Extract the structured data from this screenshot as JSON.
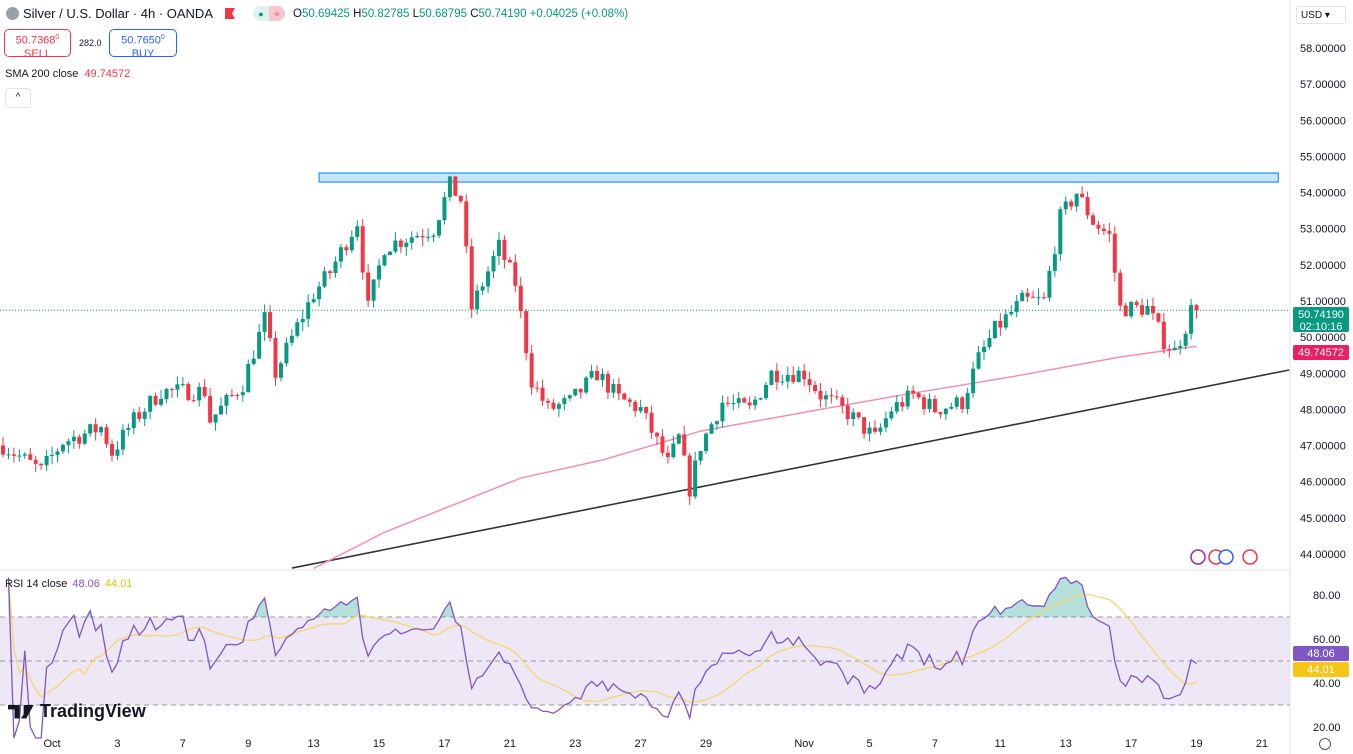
{
  "header": {
    "symbol": "Silver / U.S. Dollar · 4h · OANDA",
    "open_label": "O",
    "open": "50.69425",
    "high_label": "H",
    "high": "50.82785",
    "low_label": "L",
    "low": "50.68795",
    "close_label": "C",
    "close": "50.74190",
    "change": "+0.04025 (+0.08%)",
    "pill_icon": "≈"
  },
  "trade": {
    "sell_price": "50.7368",
    "sell_sup": "0",
    "sell_label": "SELL",
    "spread": "282.0",
    "buy_price": "50.7650",
    "buy_sup": "0",
    "buy_label": "BUY"
  },
  "sma": {
    "label": "SMA 200 close",
    "value": "49.74572"
  },
  "rsi": {
    "label": "RSI 14 close",
    "value": "48.06",
    "ma_value": "44.01"
  },
  "currency": "USD",
  "collapse_icon": "^",
  "logo": "TradingView",
  "colors": {
    "up": "#089981",
    "down": "#f23645",
    "sma": "#f48fb1",
    "rsi": "#7e57c2",
    "rsi_ma": "#f5d76e",
    "band": "#ede7f6",
    "resistance": "#2196f3"
  },
  "chart_data": {
    "type": "candlestick",
    "price_axis": {
      "min": 44,
      "max": 58,
      "ticks": [
        "58.00000",
        "57.00000",
        "56.00000",
        "55.00000",
        "54.00000",
        "53.00000",
        "52.00000",
        "51.00000",
        "50.00000",
        "49.00000",
        "48.00000",
        "47.00000",
        "46.00000",
        "45.00000",
        "44.00000"
      ]
    },
    "last_price": "50.74190",
    "countdown": "02:10:16",
    "sma_last": "49.74572",
    "x_ticks": [
      {
        "label": "Oct",
        "bar": 9
      },
      {
        "label": "3",
        "bar": 21
      },
      {
        "label": "7",
        "bar": 33
      },
      {
        "label": "9",
        "bar": 45
      },
      {
        "label": "13",
        "bar": 57
      },
      {
        "label": "15",
        "bar": 69
      },
      {
        "label": "17",
        "bar": 81
      },
      {
        "label": "21",
        "bar": 93
      },
      {
        "label": "23",
        "bar": 105
      },
      {
        "label": "27",
        "bar": 117
      },
      {
        "label": "29",
        "bar": 129
      },
      {
        "label": "Nov",
        "bar": 147
      },
      {
        "label": "5",
        "bar": 159
      },
      {
        "label": "7",
        "bar": 171
      },
      {
        "label": "11",
        "bar": 183
      },
      {
        "label": "13",
        "bar": 195
      },
      {
        "label": "17",
        "bar": 207
      },
      {
        "label": "19",
        "bar": 219
      },
      {
        "label": "21",
        "bar": 231
      }
    ],
    "close_path": [
      [
        0,
        47.0
      ],
      [
        7,
        46.3
      ],
      [
        11,
        47.1
      ],
      [
        18,
        47.5
      ],
      [
        20,
        46.8
      ],
      [
        24,
        47.7
      ],
      [
        29,
        48.5
      ],
      [
        37,
        48.5
      ],
      [
        38,
        47.7
      ],
      [
        44,
        48.7
      ],
      [
        48,
        50.5
      ],
      [
        50,
        49.0
      ],
      [
        54,
        50.3
      ],
      [
        57,
        51.2
      ],
      [
        60,
        51.8
      ],
      [
        65,
        53.2
      ],
      [
        67,
        50.8
      ],
      [
        70,
        52.5
      ],
      [
        75,
        52.8
      ],
      [
        79,
        53.0
      ],
      [
        82,
        54.2
      ],
      [
        84,
        53.8
      ],
      [
        86,
        50.8
      ],
      [
        91,
        52.5
      ],
      [
        94,
        51.5
      ],
      [
        97,
        48.8
      ],
      [
        100,
        48.0
      ],
      [
        104,
        48.2
      ],
      [
        109,
        49.0
      ],
      [
        113,
        48.3
      ],
      [
        117,
        48.0
      ],
      [
        122,
        46.5
      ],
      [
        124,
        47.2
      ],
      [
        126,
        45.8
      ],
      [
        128,
        47.0
      ],
      [
        132,
        48.2
      ],
      [
        137,
        48.0
      ],
      [
        141,
        49.0
      ],
      [
        147,
        49.0
      ],
      [
        150,
        48.4
      ],
      [
        155,
        47.9
      ],
      [
        160,
        47.2
      ],
      [
        163,
        48.0
      ],
      [
        167,
        48.4
      ],
      [
        171,
        48.0
      ],
      [
        176,
        48.2
      ],
      [
        179,
        49.4
      ],
      [
        182,
        50.2
      ],
      [
        187,
        51.0
      ],
      [
        191,
        51.0
      ],
      [
        194,
        53.3
      ],
      [
        197,
        54.0
      ],
      [
        200,
        53.2
      ],
      [
        203,
        52.8
      ],
      [
        205,
        50.8
      ],
      [
        210,
        50.8
      ],
      [
        213,
        49.9
      ],
      [
        215,
        49.6
      ],
      [
        217,
        50.3
      ],
      [
        218,
        50.75
      ],
      [
        219,
        50.742
      ]
    ],
    "sma200_path": [
      [
        57,
        43.6
      ],
      [
        70,
        44.6
      ],
      [
        95,
        46.1
      ],
      [
        110,
        46.6
      ],
      [
        128,
        47.4
      ],
      [
        150,
        48.0
      ],
      [
        165,
        48.4
      ],
      [
        185,
        48.9
      ],
      [
        205,
        49.45
      ],
      [
        219,
        49.746
      ]
    ],
    "trendline": {
      "from": {
        "bar": 53,
        "price": 43.61
      },
      "to": {
        "bar": 236,
        "price": 49.09
      }
    },
    "resistance_zone": {
      "from_bar": 58,
      "to_bar": 234,
      "low": 54.29,
      "high": 54.54
    },
    "rsi_panel": {
      "levels": [
        70,
        50,
        30
      ],
      "ticks": [
        "80.00",
        "60.00",
        "40.00",
        "20.00"
      ],
      "min": 15,
      "max": 88
    }
  }
}
